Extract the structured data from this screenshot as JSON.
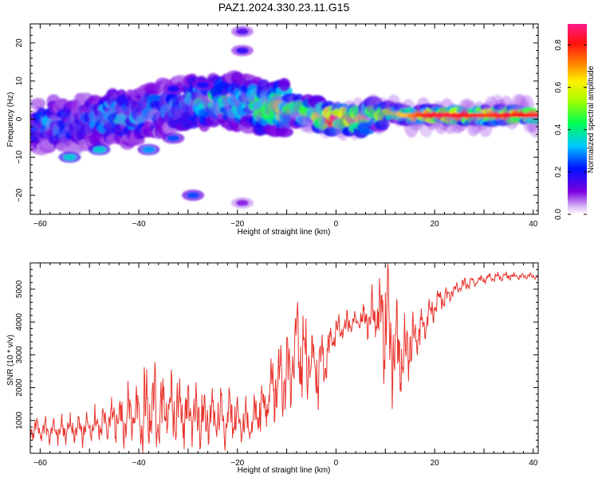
{
  "title": "PAZ1.2024.330.23.11.G15",
  "colors": {
    "snr_line": "#e8352e",
    "axis": "#000000",
    "background": "#ffffff"
  },
  "chart_data": [
    {
      "type": "heatmap",
      "xlabel": "Height of straight line (km)",
      "ylabel": "Frequency (Hz)",
      "xlim": [
        -62,
        41
      ],
      "ylim": [
        -25,
        25
      ],
      "xticks": [
        -60,
        -40,
        -20,
        0,
        20,
        40
      ],
      "yticks": [
        -20,
        -10,
        0,
        10,
        20
      ],
      "colorbar": {
        "label": "Normalized spectral amplitude",
        "range": [
          0.0,
          0.9
        ],
        "ticks": [
          0.0,
          0.2,
          0.4,
          0.6,
          0.8
        ],
        "colormap": "rainbow (violet to magenta)"
      },
      "ridge": {
        "description": "dominant frequency ridge of the spectrogram",
        "points": [
          {
            "x": -61,
            "y": -2,
            "amp": 0.22
          },
          {
            "x": -58,
            "y": -1,
            "amp": 0.28
          },
          {
            "x": -55,
            "y": -2,
            "amp": 0.25
          },
          {
            "x": -52,
            "y": -1,
            "amp": 0.22
          },
          {
            "x": -48,
            "y": 0,
            "amp": 0.3
          },
          {
            "x": -45,
            "y": 1,
            "amp": 0.38
          },
          {
            "x": -42,
            "y": 0,
            "amp": 0.3
          },
          {
            "x": -38,
            "y": 2,
            "amp": 0.32
          },
          {
            "x": -34,
            "y": 3,
            "amp": 0.28
          },
          {
            "x": -30,
            "y": 4,
            "amp": 0.35
          },
          {
            "x": -26,
            "y": 5,
            "amp": 0.4
          },
          {
            "x": -22,
            "y": 5,
            "amp": 0.42
          },
          {
            "x": -18,
            "y": 4,
            "amp": 0.4
          },
          {
            "x": -14,
            "y": 3,
            "amp": 0.45
          },
          {
            "x": -11,
            "y": 3,
            "amp": 0.6
          },
          {
            "x": -8,
            "y": 2,
            "amp": 0.5
          },
          {
            "x": -5,
            "y": 2,
            "amp": 0.45
          },
          {
            "x": -2,
            "y": 0,
            "amp": 0.8
          },
          {
            "x": 2,
            "y": 0,
            "amp": 0.75
          },
          {
            "x": 5,
            "y": 0,
            "amp": 0.65
          },
          {
            "x": 8,
            "y": 1,
            "amp": 0.5
          },
          {
            "x": 11,
            "y": 2,
            "amp": 0.55
          },
          {
            "x": 14,
            "y": 1,
            "amp": 0.65
          },
          {
            "x": 18,
            "y": 1,
            "amp": 0.8
          },
          {
            "x": 22,
            "y": 1,
            "amp": 0.85
          },
          {
            "x": 27,
            "y": 1,
            "amp": 0.8
          },
          {
            "x": 32,
            "y": 1,
            "amp": 0.78
          },
          {
            "x": 37,
            "y": 1,
            "amp": 0.82
          },
          {
            "x": 41,
            "y": 1,
            "amp": 0.8
          }
        ]
      },
      "secondary_features": [
        {
          "x": -54,
          "y": -10,
          "amp": 0.35
        },
        {
          "x": -48,
          "y": -8,
          "amp": 0.35
        },
        {
          "x": -38,
          "y": -8,
          "amp": 0.3
        },
        {
          "x": -33,
          "y": -5,
          "amp": 0.25
        },
        {
          "x": -29,
          "y": -20,
          "amp": 0.25
        },
        {
          "x": -19,
          "y": 23,
          "amp": 0.15
        },
        {
          "x": -19,
          "y": 18,
          "amp": 0.18
        },
        {
          "x": -19,
          "y": -22,
          "amp": 0.1
        },
        {
          "x": -33,
          "y": 8,
          "amp": 0.2
        },
        {
          "x": -27,
          "y": 9,
          "amp": 0.2
        }
      ]
    },
    {
      "type": "line",
      "xlabel": "Height of straight line (km)",
      "ylabel": "SNR (10 * v/v)",
      "xlim": [
        -62,
        41
      ],
      "ylim": [
        0,
        5800
      ],
      "xticks": [
        -60,
        -40,
        -20,
        0,
        20,
        40
      ],
      "yticks": [
        1000,
        2000,
        3000,
        4000,
        5000
      ],
      "series": [
        {
          "color": "#e8352e",
          "envelope": {
            "x": [
              -62,
              -60,
              -55,
              -50,
              -45,
              -40,
              -37,
              -35,
              -30,
              -25,
              -20,
              -17,
              -15,
              -10,
              -8,
              -6,
              -4,
              -2,
              0,
              3,
              6,
              8,
              10,
              11,
              12,
              14,
              16,
              18,
              20,
              25,
              30,
              35,
              41
            ],
            "mid": [
              900,
              700,
              700,
              800,
              1000,
              1200,
              1400,
              1300,
              1200,
              1100,
              1000,
              900,
              1400,
              2500,
              3200,
              2800,
              2500,
              3000,
              3700,
              4000,
              4100,
              4300,
              4200,
              3800,
              3300,
              3000,
              3500,
              4000,
              4500,
              5100,
              5300,
              5400,
              5400
            ],
            "amp": [
              500,
              350,
              400,
              500,
              700,
              1100,
              1700,
              1200,
              1000,
              900,
              800,
              700,
              900,
              1400,
              1400,
              1500,
              1200,
              800,
              500,
              350,
              500,
              900,
              2200,
              2200,
              1800,
              1000,
              700,
              600,
              400,
              200,
              150,
              130,
              100
            ]
          }
        }
      ]
    }
  ]
}
